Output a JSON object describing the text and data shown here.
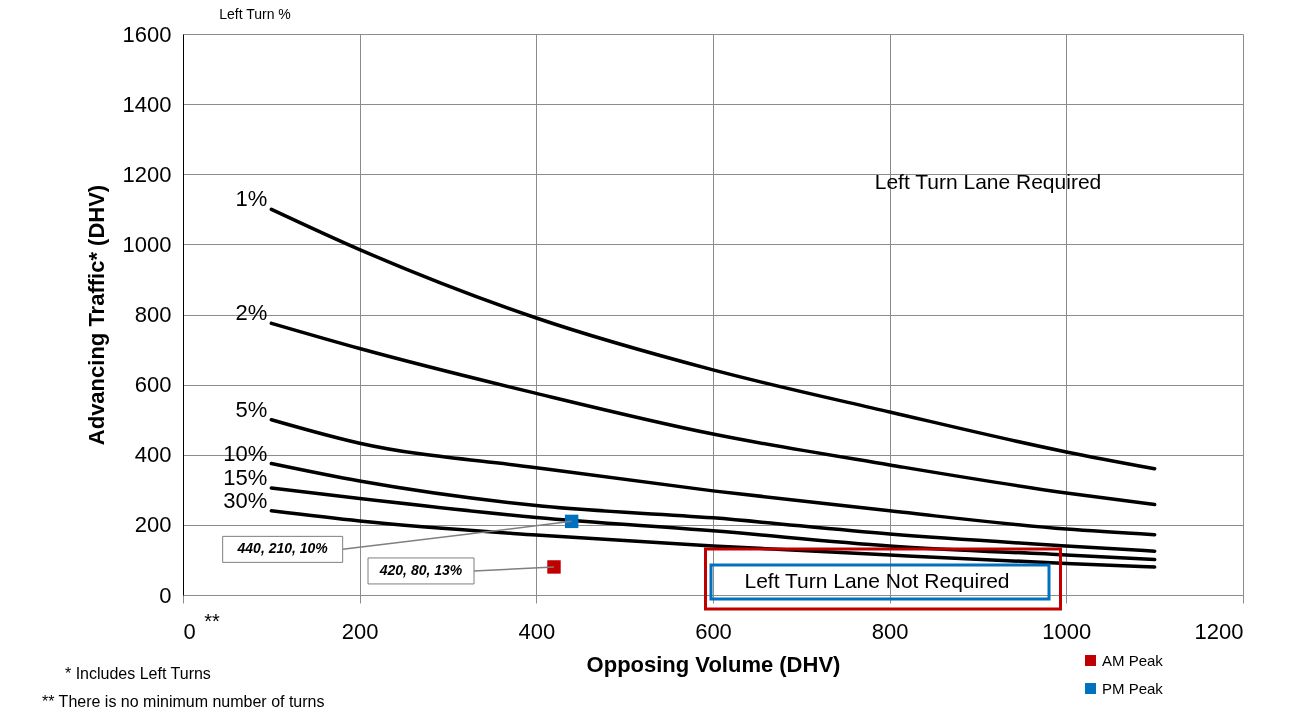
{
  "chart_data": {
    "type": "line",
    "xlabel": "Opposing Volume (DHV)",
    "ylabel": "Advancing Traffic* (DHV)",
    "xlim": [
      0,
      1200
    ],
    "xticks": [
      0,
      200,
      400,
      600,
      800,
      1000,
      1200
    ],
    "ylim": [
      0,
      1600
    ],
    "yticks": [
      0,
      200,
      400,
      600,
      800,
      1000,
      1200,
      1400,
      1600
    ],
    "grid": true,
    "legend": "bottom right",
    "line_style": "solid",
    "series": [
      {
        "name": "1%",
        "color": "#000000",
        "x": [
          100,
          200,
          400,
          600,
          800,
          1000,
          1100
        ],
        "values": [
          1100,
          985,
          790,
          642,
          522,
          408,
          360
        ]
      },
      {
        "name": "2%",
        "color": "#000000",
        "x": [
          100,
          200,
          400,
          600,
          800,
          1000,
          1100
        ],
        "values": [
          775,
          703,
          575,
          459,
          371,
          291,
          258
        ]
      },
      {
        "name": "5%",
        "color": "#000000",
        "x": [
          100,
          200,
          400,
          600,
          800,
          1000,
          1100
        ],
        "values": [
          500,
          433,
          363,
          297,
          240,
          188,
          172
        ]
      },
      {
        "name": "10%",
        "color": "#000000",
        "x": [
          100,
          200,
          400,
          600,
          800,
          1000,
          1100
        ],
        "values": [
          375,
          325,
          255,
          220,
          174,
          140,
          125
        ]
      },
      {
        "name": "15%",
        "color": "#000000",
        "x": [
          100,
          200,
          400,
          600,
          800,
          1000,
          1100
        ],
        "values": [
          305,
          275,
          221,
          183,
          140,
          114,
          101
        ]
      },
      {
        "name": "30%",
        "color": "#000000",
        "x": [
          100,
          200,
          400,
          600,
          800,
          1000,
          1100
        ],
        "values": [
          240,
          211,
          171,
          140,
          114,
          90,
          80
        ]
      },
      {
        "name": "AM Peak",
        "type": "scatter",
        "marker": "square",
        "color": "#c00000",
        "x": [
          420
        ],
        "values": [
          80
        ]
      },
      {
        "name": "PM Peak",
        "type": "scatter",
        "marker": "square",
        "color": "#0070c0",
        "x": [
          440
        ],
        "values": [
          210
        ]
      }
    ],
    "annotations": [
      "Left Turn %",
      "Left Turn Lane Required",
      "Left Turn Lane Not Required",
      "**",
      "* Includes Left Turns",
      "** There is no minimum number of turns",
      {
        "text": "440, 210, 10%",
        "x": 440,
        "y": 210
      },
      {
        "text": "420, 80, 13%",
        "x": 420,
        "y": 80
      }
    ]
  }
}
